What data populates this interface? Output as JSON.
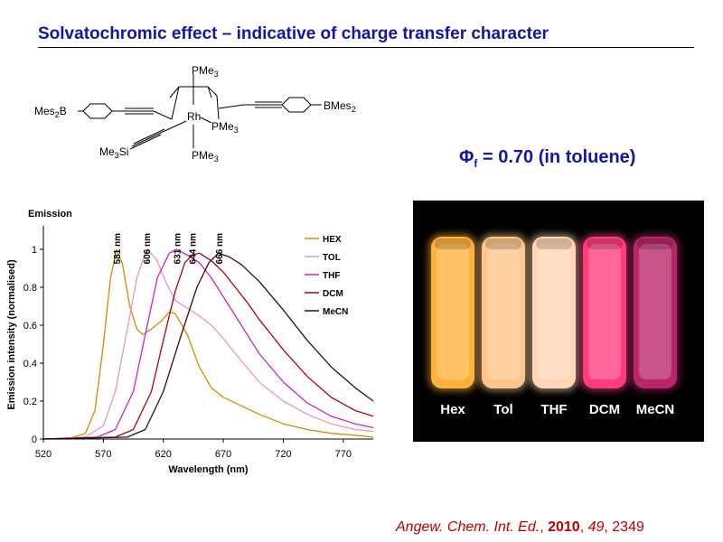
{
  "slide": {
    "title": "Solvatochromic effect – indicative of charge transfer character",
    "quantum_yield": {
      "symbol": "Φ",
      "subscript": "f",
      "text": " = 0.70 (in toluene)"
    },
    "citation": {
      "journal": "Angew. Chem. Int. Ed.",
      "sep1": ", ",
      "year": "2010",
      "sep2": ", ",
      "volume": "49",
      "sep3": ", ",
      "pages": "2349"
    }
  },
  "structure": {
    "labels": {
      "pme3_top": "PMe",
      "pme3_top_sub": "3",
      "pme3_mid": "PMe",
      "pme3_mid_sub": "3",
      "pme3_bottom": "PMe",
      "pme3_bottom_sub": "3",
      "rh": "Rh",
      "mes2b_left": "Mes",
      "mes2b_left_sub": "2",
      "mes2b_left_tail": "B",
      "bmes2_right": "BMes",
      "bmes2_right_sub": "2",
      "me3si": "Me",
      "me3si_sub": "3",
      "me3si_tail": "Si"
    }
  },
  "photo": {
    "labels": [
      "Hex",
      "Tol",
      "THF",
      "DCM",
      "MeCN"
    ],
    "vial_colors": [
      "#ffb13a",
      "#ffc58a",
      "#ffd7b4",
      "#ff3d7c",
      "#b8266a"
    ]
  },
  "chart_data": {
    "type": "line",
    "title": "",
    "corner_label": "Emission",
    "xlabel": "Wavelength (nm)",
    "ylabel": "Emission intensity (normalised)",
    "xlim": [
      520,
      795
    ],
    "ylim": [
      0,
      1.1
    ],
    "xticks": [
      520,
      570,
      620,
      670,
      720,
      770
    ],
    "yticks": [
      0,
      0.2,
      0.4,
      0.6,
      0.8,
      1
    ],
    "legend_position": "top-right",
    "peak_annotations": [
      {
        "x": 581,
        "text": "581 nm"
      },
      {
        "x": 606,
        "text": "606 nm"
      },
      {
        "x": 631,
        "text": "631 nm"
      },
      {
        "x": 644,
        "text": "644 nm"
      },
      {
        "x": 666,
        "text": "666 nm"
      }
    ],
    "series": [
      {
        "name": "HEX",
        "color": "#d48a00",
        "points": [
          [
            520,
            0
          ],
          [
            540,
            0
          ],
          [
            555,
            0.03
          ],
          [
            563,
            0.15
          ],
          [
            570,
            0.5
          ],
          [
            576,
            0.85
          ],
          [
            581,
            1.0
          ],
          [
            586,
            0.92
          ],
          [
            592,
            0.7
          ],
          [
            598,
            0.58
          ],
          [
            603,
            0.55
          ],
          [
            610,
            0.58
          ],
          [
            618,
            0.62
          ],
          [
            625,
            0.67
          ],
          [
            630,
            0.66
          ],
          [
            640,
            0.55
          ],
          [
            650,
            0.38
          ],
          [
            660,
            0.27
          ],
          [
            670,
            0.22
          ],
          [
            680,
            0.19
          ],
          [
            700,
            0.13
          ],
          [
            720,
            0.08
          ],
          [
            740,
            0.05
          ],
          [
            760,
            0.03
          ],
          [
            780,
            0.02
          ],
          [
            795,
            0.01
          ]
        ]
      },
      {
        "name": "TOL",
        "color": "#e596c8",
        "points": [
          [
            520,
            0
          ],
          [
            555,
            0.01
          ],
          [
            570,
            0.07
          ],
          [
            580,
            0.25
          ],
          [
            590,
            0.58
          ],
          [
            598,
            0.85
          ],
          [
            606,
            1.0
          ],
          [
            614,
            0.95
          ],
          [
            622,
            0.83
          ],
          [
            630,
            0.73
          ],
          [
            640,
            0.69
          ],
          [
            650,
            0.65
          ],
          [
            660,
            0.6
          ],
          [
            670,
            0.53
          ],
          [
            680,
            0.45
          ],
          [
            700,
            0.3
          ],
          [
            720,
            0.2
          ],
          [
            740,
            0.13
          ],
          [
            760,
            0.08
          ],
          [
            780,
            0.05
          ],
          [
            795,
            0.04
          ]
        ]
      },
      {
        "name": "THF",
        "color": "#cc22cc",
        "points": [
          [
            520,
            0
          ],
          [
            565,
            0.01
          ],
          [
            580,
            0.05
          ],
          [
            595,
            0.25
          ],
          [
            605,
            0.55
          ],
          [
            615,
            0.85
          ],
          [
            625,
            0.98
          ],
          [
            631,
            1.0
          ],
          [
            640,
            0.97
          ],
          [
            650,
            0.93
          ],
          [
            660,
            0.85
          ],
          [
            670,
            0.75
          ],
          [
            680,
            0.65
          ],
          [
            690,
            0.55
          ],
          [
            700,
            0.45
          ],
          [
            720,
            0.3
          ],
          [
            740,
            0.19
          ],
          [
            760,
            0.12
          ],
          [
            780,
            0.08
          ],
          [
            795,
            0.06
          ]
        ]
      },
      {
        "name": "DCM",
        "color": "#b00018",
        "points": [
          [
            520,
            0
          ],
          [
            580,
            0.01
          ],
          [
            595,
            0.05
          ],
          [
            610,
            0.25
          ],
          [
            620,
            0.52
          ],
          [
            630,
            0.78
          ],
          [
            638,
            0.93
          ],
          [
            644,
            0.97
          ],
          [
            650,
            0.98
          ],
          [
            660,
            0.94
          ],
          [
            670,
            0.88
          ],
          [
            680,
            0.8
          ],
          [
            690,
            0.72
          ],
          [
            700,
            0.63
          ],
          [
            720,
            0.47
          ],
          [
            740,
            0.33
          ],
          [
            760,
            0.22
          ],
          [
            780,
            0.15
          ],
          [
            795,
            0.12
          ]
        ]
      },
      {
        "name": "MeCN",
        "color": "#3a0a18",
        "points": [
          [
            520,
            0
          ],
          [
            590,
            0.01
          ],
          [
            605,
            0.05
          ],
          [
            620,
            0.25
          ],
          [
            635,
            0.55
          ],
          [
            648,
            0.8
          ],
          [
            658,
            0.93
          ],
          [
            666,
            0.98
          ],
          [
            675,
            0.96
          ],
          [
            685,
            0.92
          ],
          [
            700,
            0.83
          ],
          [
            720,
            0.68
          ],
          [
            740,
            0.52
          ],
          [
            760,
            0.38
          ],
          [
            780,
            0.27
          ],
          [
            795,
            0.2
          ]
        ]
      }
    ]
  }
}
